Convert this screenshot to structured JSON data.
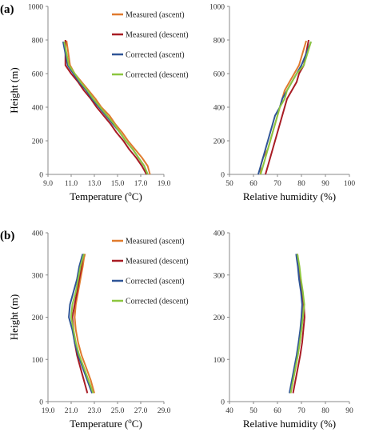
{
  "colors": {
    "measured_ascent": "#e07b2e",
    "measured_descent": "#a81c24",
    "corrected_ascent": "#2f5597",
    "corrected_descent": "#8dc63f"
  },
  "panel_labels": [
    "(a)",
    "(b)"
  ],
  "chart_data": [
    {
      "type": "line",
      "panel": "(a)",
      "legend_position": "top-right",
      "xlabel_main": "Temperature (",
      "xlabel_sup": "o",
      "xlabel_end": "C)",
      "ylabel": "Height (m)",
      "xlim": [
        9.0,
        19.0
      ],
      "ylim": [
        0,
        1000
      ],
      "xticks": [
        "9.0",
        "11.0",
        "13.0",
        "15.0",
        "17.0",
        "19.0"
      ],
      "yticks": [
        "0",
        "200",
        "400",
        "600",
        "800",
        "1000"
      ],
      "series": [
        {
          "name": "Measured (ascent)",
          "x": [
            17.8,
            17.6,
            17.1,
            16.5,
            15.9,
            15.4,
            14.8,
            14.3,
            13.6,
            13.1,
            12.5,
            11.9,
            11.3,
            10.9,
            10.6
          ],
          "y": [
            0,
            50,
            100,
            150,
            200,
            250,
            300,
            350,
            400,
            450,
            500,
            550,
            600,
            650,
            795
          ]
        },
        {
          "name": "Measured (descent)",
          "x": [
            17.5,
            17.1,
            16.6,
            16.0,
            15.5,
            14.9,
            14.4,
            13.8,
            13.2,
            12.7,
            12.1,
            11.6,
            11.0,
            10.5,
            10.5
          ],
          "y": [
            0,
            50,
            100,
            150,
            200,
            250,
            300,
            350,
            400,
            450,
            500,
            550,
            600,
            650,
            800
          ]
        },
        {
          "name": "Corrected (ascent)",
          "x": [
            17.6,
            17.3,
            16.8,
            16.3,
            15.7,
            15.2,
            14.6,
            14.0,
            13.4,
            12.8,
            12.3,
            11.7,
            11.2,
            10.7,
            10.3
          ],
          "y": [
            0,
            50,
            100,
            150,
            200,
            250,
            300,
            350,
            400,
            450,
            500,
            550,
            600,
            650,
            790
          ]
        },
        {
          "name": "Corrected (descent)",
          "x": [
            17.6,
            17.3,
            16.8,
            16.3,
            15.7,
            15.2,
            14.7,
            14.1,
            13.5,
            12.9,
            12.4,
            11.8,
            11.3,
            10.8,
            10.4
          ],
          "y": [
            0,
            50,
            100,
            150,
            200,
            250,
            300,
            350,
            400,
            450,
            500,
            550,
            600,
            650,
            790
          ]
        }
      ]
    },
    {
      "type": "line",
      "panel": "(a)",
      "xlabel": "Relative humidity (%)",
      "xlim": [
        50,
        100
      ],
      "ylim": [
        0,
        1000
      ],
      "xticks": [
        "50",
        "60",
        "70",
        "80",
        "90",
        "100"
      ],
      "yticks": [
        "0",
        "200",
        "400",
        "600",
        "800",
        "1000"
      ],
      "series": [
        {
          "name": "Measured (ascent)",
          "x": [
            63,
            63,
            64,
            66,
            67,
            68,
            69,
            70,
            71,
            72,
            73,
            75,
            77,
            79,
            82
          ],
          "y": [
            0,
            50,
            100,
            150,
            200,
            250,
            300,
            350,
            400,
            450,
            500,
            550,
            600,
            650,
            795
          ]
        },
        {
          "name": "Measured (descent)",
          "x": [
            65,
            66,
            67,
            68,
            69,
            70,
            71,
            72,
            73,
            74,
            76,
            78,
            79,
            81,
            83
          ],
          "y": [
            0,
            50,
            100,
            150,
            200,
            250,
            300,
            350,
            400,
            450,
            500,
            550,
            600,
            650,
            800
          ]
        },
        {
          "name": "Corrected (ascent)",
          "x": [
            62,
            63,
            64,
            65,
            66,
            67,
            68,
            69,
            71,
            72,
            74,
            76,
            78,
            80,
            84
          ],
          "y": [
            0,
            50,
            100,
            150,
            200,
            250,
            300,
            350,
            400,
            450,
            500,
            550,
            600,
            650,
            790
          ]
        },
        {
          "name": "Corrected (descent)",
          "x": [
            63,
            64,
            65,
            66,
            67,
            68,
            69,
            70,
            71,
            73,
            74,
            76,
            78,
            81,
            84
          ],
          "y": [
            0,
            50,
            100,
            150,
            200,
            250,
            300,
            350,
            400,
            450,
            500,
            550,
            600,
            650,
            790
          ]
        }
      ]
    },
    {
      "type": "line",
      "panel": "(b)",
      "legend_position": "top-right",
      "xlabel_main": "Temperature (",
      "xlabel_sup": "o",
      "xlabel_end": "C)",
      "ylabel": "Height (m)",
      "xlim": [
        19.0,
        29.0
      ],
      "ylim": [
        0,
        400
      ],
      "xticks": [
        "19.0",
        "21.0",
        "23.0",
        "25.0",
        "27.0",
        "29.0"
      ],
      "yticks": [
        "0",
        "100",
        "200",
        "300",
        "400"
      ],
      "series": [
        {
          "name": "Measured (ascent)",
          "x": [
            23.0,
            22.7,
            22.3,
            21.9,
            21.6,
            21.4,
            21.3,
            21.4,
            21.6,
            21.8,
            22.0,
            22.1,
            22.2
          ],
          "y": [
            20,
            50,
            80,
            110,
            140,
            170,
            200,
            230,
            260,
            290,
            320,
            340,
            350
          ]
        },
        {
          "name": "Measured (descent)",
          "x": [
            22.4,
            22.1,
            21.8,
            21.5,
            21.3,
            21.2,
            21.1,
            21.3,
            21.5,
            21.7,
            21.9,
            22.0,
            22.1
          ],
          "y": [
            20,
            50,
            80,
            110,
            140,
            170,
            200,
            230,
            260,
            290,
            320,
            340,
            350
          ]
        },
        {
          "name": "Corrected (ascent)",
          "x": [
            22.8,
            22.4,
            22.0,
            21.6,
            21.3,
            21.1,
            20.8,
            20.9,
            21.2,
            21.5,
            21.7,
            21.9,
            22.0
          ],
          "y": [
            20,
            50,
            80,
            110,
            140,
            170,
            200,
            230,
            260,
            290,
            320,
            340,
            350
          ]
        },
        {
          "name": "Corrected (descent)",
          "x": [
            22.9,
            22.5,
            22.1,
            21.7,
            21.4,
            21.2,
            21.0,
            21.1,
            21.4,
            21.6,
            21.8,
            22.0,
            22.1
          ],
          "y": [
            20,
            50,
            80,
            110,
            140,
            170,
            200,
            230,
            260,
            290,
            320,
            340,
            350
          ]
        }
      ]
    },
    {
      "type": "line",
      "panel": "(b)",
      "xlabel": "Relative humidity (%)",
      "xlim": [
        40,
        90
      ],
      "ylim": [
        0,
        400
      ],
      "xticks": [
        "40",
        "50",
        "60",
        "70",
        "80",
        "90"
      ],
      "yticks": [
        "0",
        "100",
        "200",
        "300",
        "400"
      ],
      "series": [
        {
          "name": "Measured (ascent)",
          "x": [
            65.5,
            66.5,
            67.5,
            68.5,
            69.3,
            70.0,
            70.5,
            70.8,
            70.3,
            69.5,
            69.0,
            68.5,
            68.2
          ],
          "y": [
            20,
            50,
            80,
            110,
            140,
            170,
            200,
            230,
            260,
            290,
            320,
            340,
            350
          ]
        },
        {
          "name": "Measured (descent)",
          "x": [
            66.5,
            67.5,
            68.5,
            69.5,
            70.3,
            70.8,
            71.3,
            71.0,
            70.3,
            69.5,
            69.0,
            68.5,
            68.3
          ],
          "y": [
            20,
            50,
            80,
            110,
            140,
            170,
            200,
            230,
            260,
            290,
            320,
            340,
            350
          ]
        },
        {
          "name": "Corrected (ascent)",
          "x": [
            65.0,
            66.0,
            67.0,
            68.0,
            68.8,
            69.5,
            70.0,
            70.3,
            69.8,
            69.0,
            68.5,
            68.0,
            67.8
          ],
          "y": [
            20,
            50,
            80,
            110,
            140,
            170,
            200,
            230,
            260,
            290,
            320,
            340,
            350
          ]
        },
        {
          "name": "Corrected (descent)",
          "x": [
            65.5,
            66.5,
            67.5,
            68.5,
            69.3,
            70.0,
            70.6,
            71.2,
            70.6,
            69.8,
            69.2,
            68.6,
            68.3
          ],
          "y": [
            20,
            50,
            80,
            110,
            140,
            170,
            200,
            230,
            260,
            290,
            320,
            340,
            350
          ]
        }
      ]
    }
  ]
}
